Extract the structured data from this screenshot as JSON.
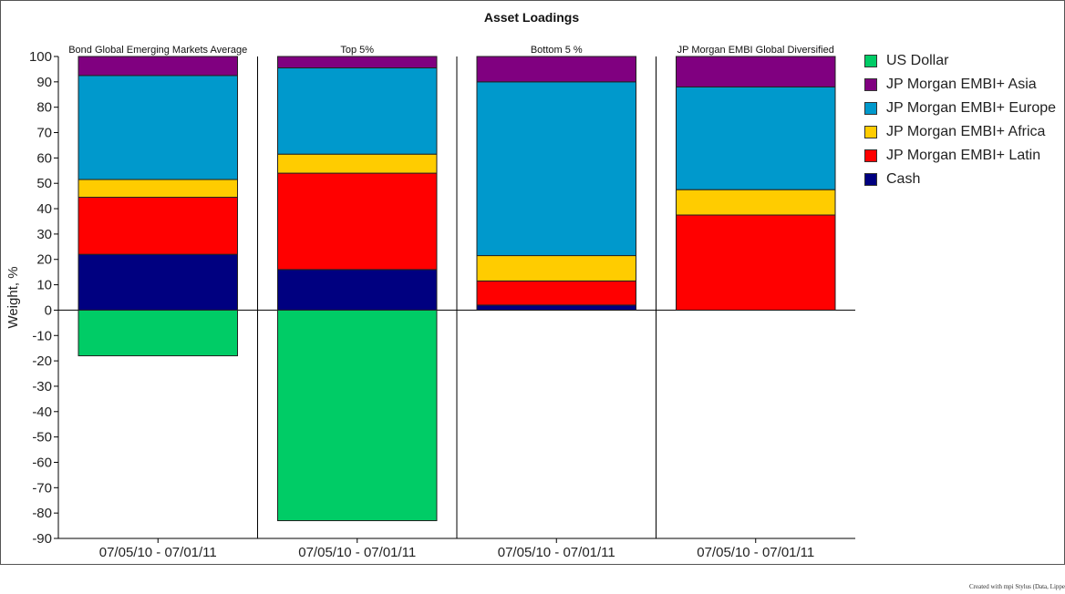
{
  "footer_text": "Created with mpi Stylus (Data, Lippe",
  "chart_data": {
    "type": "bar",
    "stacked": true,
    "title": "Asset Loadings",
    "ylabel": "Weight, %",
    "ylim": [
      -90,
      100
    ],
    "yticks": [
      100,
      90,
      80,
      70,
      60,
      50,
      40,
      30,
      20,
      10,
      0,
      -10,
      -20,
      -30,
      -40,
      -50,
      -60,
      -70,
      -80,
      -90
    ],
    "legend_position": "right",
    "panels": [
      {
        "title": "Bond Global Emerging Markets Average",
        "category": "07/05/10 - 07/01/11"
      },
      {
        "title": "Top 5%",
        "category": "07/05/10 - 07/01/11"
      },
      {
        "title": "Bottom 5 %",
        "category": "07/05/10 - 07/01/11"
      },
      {
        "title": "JP Morgan EMBI Global Diversified",
        "category": "07/05/10 - 07/01/11"
      }
    ],
    "series": [
      {
        "name": "Cash",
        "color": "#000080",
        "values": [
          22,
          16,
          2,
          0
        ]
      },
      {
        "name": "JP Morgan EMBI+ Latin",
        "color": "#ff0000",
        "values": [
          22.5,
          38,
          9.5,
          37.5
        ]
      },
      {
        "name": "JP Morgan EMBI+ Africa",
        "color": "#ffcc00",
        "values": [
          7,
          7.5,
          10,
          10
        ]
      },
      {
        "name": "JP Morgan EMBI+ Europe",
        "color": "#0099cc",
        "values": [
          41,
          34,
          68.5,
          40.5
        ]
      },
      {
        "name": "JP Morgan EMBI+ Asia",
        "color": "#800080",
        "values": [
          7.5,
          4.5,
          10,
          12
        ]
      },
      {
        "name": "US Dollar",
        "color": "#00cc66",
        "values": [
          -18,
          -83,
          0,
          0
        ]
      }
    ],
    "legend_order": [
      "US Dollar",
      "JP Morgan EMBI+ Asia",
      "JP Morgan EMBI+ Europe",
      "JP Morgan EMBI+ Africa",
      "JP Morgan EMBI+ Latin",
      "Cash"
    ]
  }
}
